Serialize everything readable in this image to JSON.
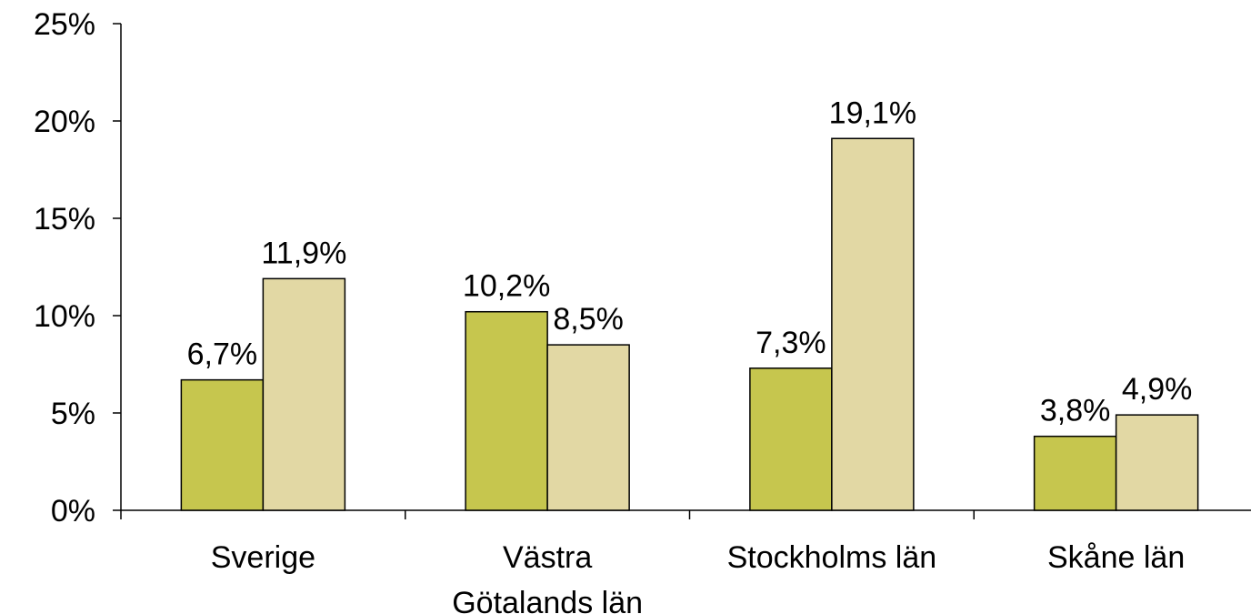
{
  "chart_data": {
    "type": "bar",
    "categories": [
      [
        "Sverige"
      ],
      [
        "Västra",
        "Götalands län"
      ],
      [
        "Stockholms län"
      ],
      [
        "Skåne län"
      ]
    ],
    "series": [
      {
        "values": [
          6.7,
          10.2,
          7.3,
          3.8
        ],
        "labels": [
          "6,7%",
          "10,2%",
          "7,3%",
          "3,8%"
        ],
        "color": "#c6c64e"
      },
      {
        "values": [
          11.9,
          8.5,
          19.1,
          4.9
        ],
        "labels": [
          "11,9%",
          "8,5%",
          "19,1%",
          "4,9%"
        ],
        "color": "#e2d8a4"
      }
    ],
    "ylim": [
      0,
      25
    ],
    "yticks": [
      0,
      5,
      10,
      15,
      20,
      25
    ],
    "ytick_labels": [
      "0%",
      "5%",
      "10%",
      "15%",
      "20%",
      "25%"
    ],
    "grid": false,
    "title": "",
    "xlabel": "",
    "ylabel": ""
  }
}
